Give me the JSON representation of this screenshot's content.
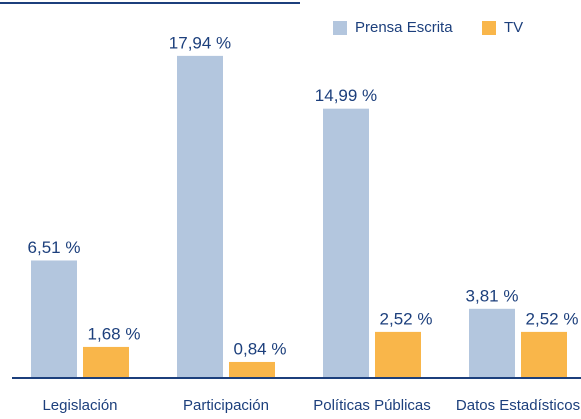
{
  "chart_data": {
    "type": "bar",
    "categories": [
      "Legislación",
      "Participación",
      "Políticas Públicas",
      "Datos Estadísticos"
    ],
    "series": [
      {
        "name": "Prensa Escrita",
        "color": "#b3c6de",
        "values": [
          6.51,
          17.94,
          14.99,
          3.81
        ],
        "value_labels": [
          "6,51 %",
          "17,94 %",
          "14,99 %",
          "3,81 %"
        ]
      },
      {
        "name": "TV",
        "color": "#f9b64a",
        "values": [
          1.68,
          0.84,
          2.52,
          2.52
        ],
        "value_labels": [
          "1,68 %",
          "0,84 %",
          "2,52 %",
          "2,52 %"
        ]
      }
    ],
    "legend": "upper right"
  }
}
